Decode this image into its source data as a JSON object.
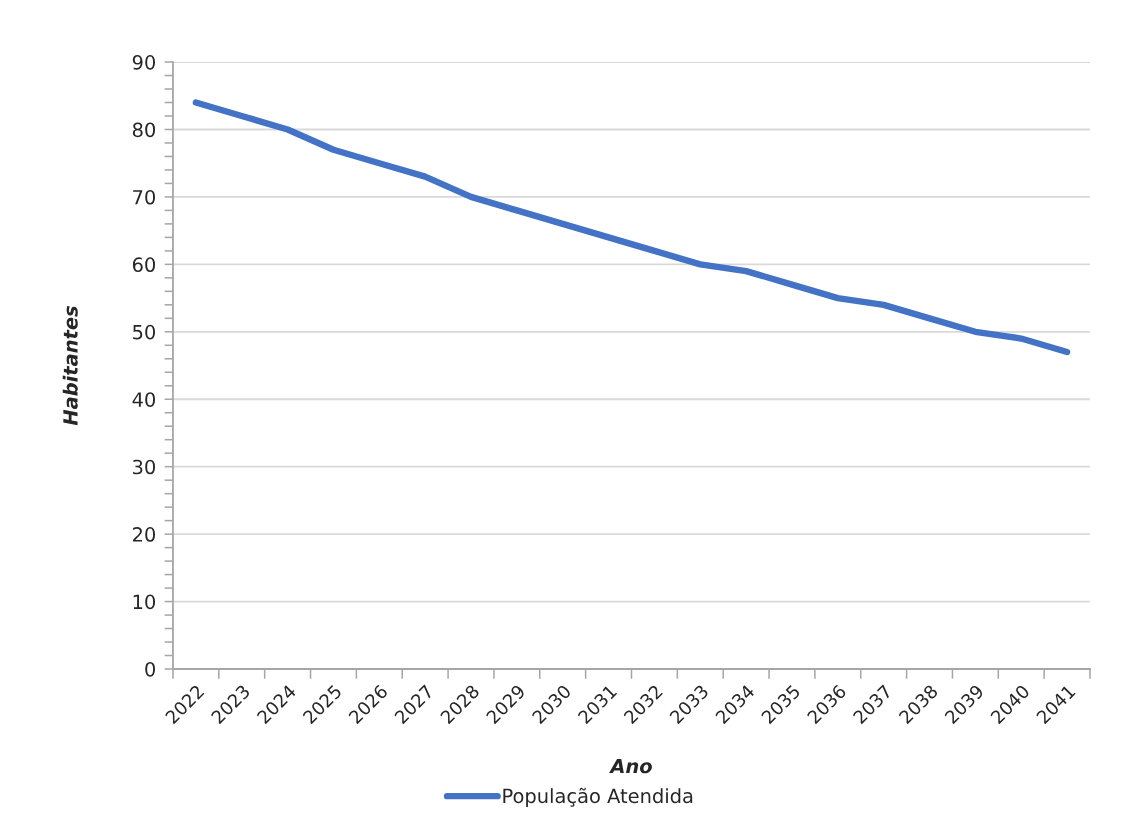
{
  "chart_data": {
    "type": "line",
    "xlabel": "Ano",
    "ylabel": "Habitantes",
    "categories": [
      "2022",
      "2023",
      "2024",
      "2025",
      "2026",
      "2027",
      "2028",
      "2029",
      "2030",
      "2031",
      "2032",
      "2033",
      "2034",
      "2035",
      "2036",
      "2037",
      "2038",
      "2039",
      "2040",
      "2041"
    ],
    "series": [
      {
        "name": "População Atendida",
        "color": "#4472c4",
        "values": [
          84,
          82,
          80,
          77,
          75,
          73,
          70,
          68,
          66,
          64,
          62,
          60,
          59,
          57,
          55,
          54,
          52,
          50,
          49,
          47
        ]
      }
    ],
    "ylim": [
      0,
      90
    ],
    "yticks": [
      0,
      {
        "value": 2,
        "label": null
      },
      {
        "value": 4,
        "label": null
      },
      {
        "value": 6,
        "label": null
      },
      {
        "value": 8,
        "label": null
      },
      10,
      {
        "value": 12,
        "label": null
      },
      {
        "value": 14,
        "label": null
      },
      {
        "value": 16,
        "label": null
      },
      {
        "value": 18,
        "label": null
      },
      20,
      {
        "value": 22,
        "label": null
      },
      {
        "value": 24,
        "label": null
      },
      {
        "value": 26,
        "label": null
      },
      {
        "value": 28,
        "label": null
      },
      30,
      {
        "value": 32,
        "label": null
      },
      {
        "value": 34,
        "label": null
      },
      {
        "value": 36,
        "label": null
      },
      {
        "value": 38,
        "label": null
      },
      40,
      {
        "value": 42,
        "label": null
      },
      {
        "value": 44,
        "label": null
      },
      {
        "value": 46,
        "label": null
      },
      {
        "value": 48,
        "label": null
      },
      50,
      {
        "value": 52,
        "label": null
      },
      {
        "value": 54,
        "label": null
      },
      {
        "value": 56,
        "label": null
      },
      {
        "value": 58,
        "label": null
      },
      60,
      {
        "value": 62,
        "label": null
      },
      {
        "value": 64,
        "label": null
      },
      {
        "value": 66,
        "label": null
      },
      {
        "value": 68,
        "label": null
      },
      70,
      {
        "value": 72,
        "label": null
      },
      {
        "value": 74,
        "label": null
      },
      {
        "value": 76,
        "label": null
      },
      {
        "value": 78,
        "label": null
      },
      80,
      {
        "value": 82,
        "label": null
      },
      {
        "value": 84,
        "label": null
      },
      {
        "value": 86,
        "label": null
      },
      {
        "value": 88,
        "label": null
      },
      90
    ],
    "grid": "y",
    "legend": "bottom",
    "marker": "none",
    "line_style": "solid"
  }
}
